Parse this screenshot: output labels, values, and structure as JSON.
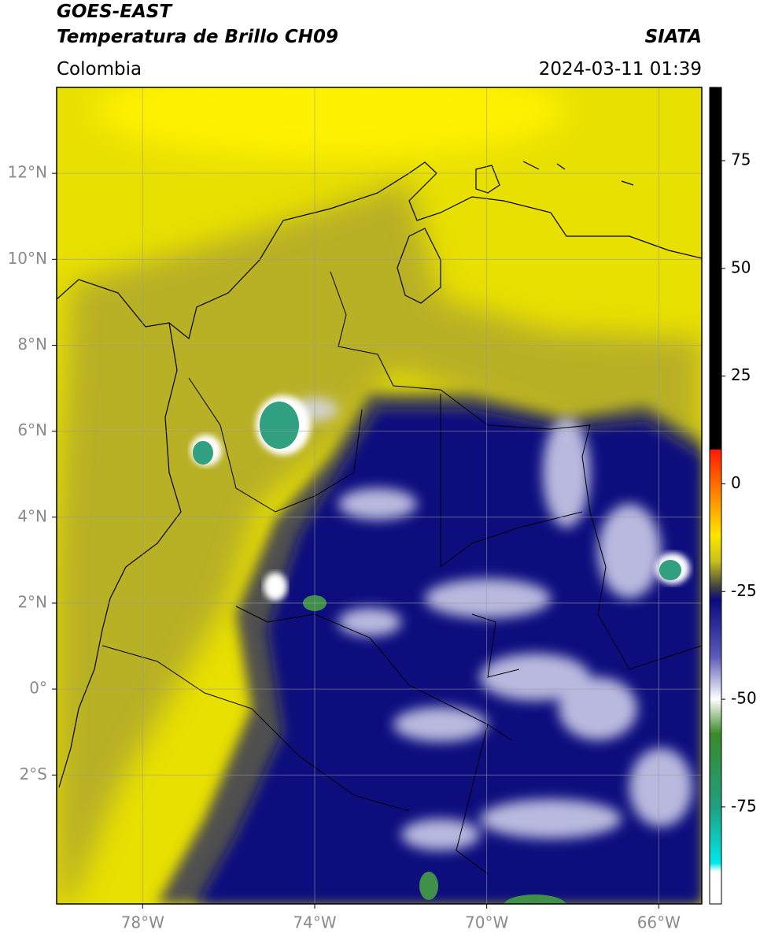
{
  "map": {
    "title": "GOES-EAST",
    "subtitle": "Temperatura de Brillo CH09",
    "source": "SIATA",
    "region": "Colombia",
    "timestamp": "2024-03-11 01:39",
    "xlim": [
      -80,
      -65
    ],
    "ylim": [
      -5,
      14
    ],
    "xticks": [
      {
        "value": -78,
        "label": "78°W"
      },
      {
        "value": -74,
        "label": "74°W"
      },
      {
        "value": -70,
        "label": "70°W"
      },
      {
        "value": -66,
        "label": "66°W"
      }
    ],
    "yticks": [
      {
        "value": 12,
        "label": "12°N"
      },
      {
        "value": 10,
        "label": "10°N"
      },
      {
        "value": 8,
        "label": "8°N"
      },
      {
        "value": 6,
        "label": "6°N"
      },
      {
        "value": 4,
        "label": "4°N"
      },
      {
        "value": 2,
        "label": "2°N"
      },
      {
        "value": 0,
        "label": "0°"
      },
      {
        "value": -2,
        "label": "2°S"
      }
    ],
    "grid": true,
    "colorbar": {
      "lim": [
        -97.5,
        92
      ],
      "ticks": [
        75,
        50,
        25,
        0,
        -25,
        -50,
        -75
      ],
      "stops": [
        {
          "value": 92,
          "color": "#000000"
        },
        {
          "value": 8,
          "color": "#000000"
        },
        {
          "value": 7.9,
          "color": "#ff1a00"
        },
        {
          "value": -3,
          "color": "#ff8c00"
        },
        {
          "value": -12,
          "color": "#ffe600"
        },
        {
          "value": -18,
          "color": "#c8c020"
        },
        {
          "value": -24,
          "color": "#404040"
        },
        {
          "value": -27,
          "color": "#0a0a80"
        },
        {
          "value": -40,
          "color": "#5a5ab8"
        },
        {
          "value": -50,
          "color": "#ffffff"
        },
        {
          "value": -58,
          "color": "#3a8a28"
        },
        {
          "value": -75,
          "color": "#20a080"
        },
        {
          "value": -88,
          "color": "#00e8e8"
        },
        {
          "value": -90,
          "color": "#ffffff"
        },
        {
          "value": -97.5,
          "color": "#ffffff"
        }
      ]
    }
  }
}
